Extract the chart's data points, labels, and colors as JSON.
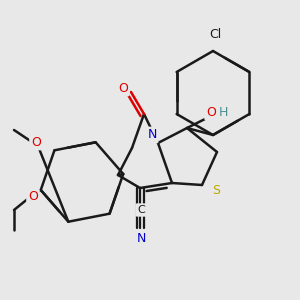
{
  "bg_color": "#e8e8e8",
  "bond_color": "#1a1a1a",
  "bond_width": 1.8,
  "atom_colors": {
    "O": "#dd0000",
    "N": "#0000cc",
    "S": "#bbaa00",
    "Cl": "#1a1a1a",
    "C": "#1a1a1a",
    "H": "#4a9090"
  },
  "font_size": 9,
  "small_font": 7.5
}
